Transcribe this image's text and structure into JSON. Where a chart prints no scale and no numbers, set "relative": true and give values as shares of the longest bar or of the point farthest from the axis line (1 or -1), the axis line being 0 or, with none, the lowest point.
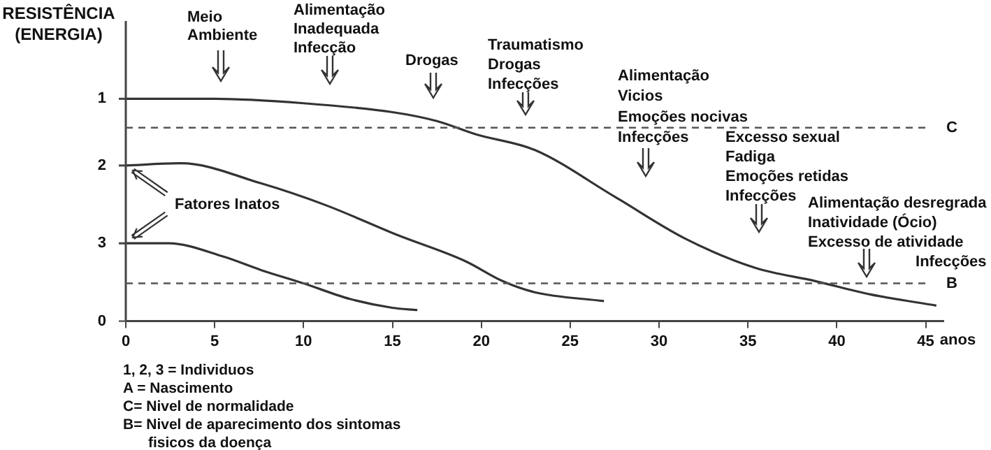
{
  "chart_data": {
    "type": "line",
    "relative": true,
    "ylabel": "RESISTÊNCIA\n(ENERGIA)",
    "xlabel": "anos",
    "xlim": [
      0,
      46
    ],
    "xticks": [
      0,
      5,
      10,
      15,
      20,
      25,
      30,
      35,
      40,
      45
    ],
    "grid": false,
    "legend": false,
    "marker": "none",
    "line_style": "solid",
    "series": [
      {
        "name": "1",
        "color": "#333333",
        "x": [
          0,
          5,
          10,
          15,
          17.5,
          19.7,
          23,
          27.5,
          31.5,
          35.4,
          38.8,
          41.9,
          45.6
        ],
        "values": [
          1,
          1,
          0.98,
          0.94,
          0.9,
          0.84,
          0.77,
          0.56,
          0.37,
          0.24,
          0.18,
          0.12,
          0.07
        ]
      },
      {
        "name": "2",
        "color": "#333333",
        "x": [
          0,
          3.1,
          7.6,
          11.3,
          15.2,
          19.1,
          21.2,
          23,
          26.9
        ],
        "values": [
          0.7,
          0.71,
          0.62,
          0.52,
          0.39,
          0.27,
          0.18,
          0.13,
          0.09
        ]
      },
      {
        "name": "3",
        "color": "#333333",
        "x": [
          0,
          2.4,
          5.5,
          7.6,
          10,
          12.6,
          15,
          16.4
        ],
        "values": [
          0.35,
          0.35,
          0.29,
          0.23,
          0.17,
          0.1,
          0.06,
          0.05
        ]
      }
    ],
    "ref_lines": [
      {
        "axis": "y",
        "value": 0.87,
        "label": "C",
        "color": "#555555",
        "line_style": "dashed"
      },
      {
        "axis": "y",
        "value": 0.17,
        "label": "B",
        "color": "#555555",
        "line_style": "dashed"
      }
    ],
    "annotations": [
      "Meio\nAmbiente",
      "Alimentação\nInadequada\nInfecção",
      "Drogas",
      "Traumatismo\nDrogas\nInfecções",
      "Alimentação\nVicios\nEmoções nocivas\nInfecções",
      "Excesso sexual\nFadiga\nEmoções retidas\nInfecções",
      "Alimentação desregrada\nInatividade (Ócio)\nExcesso de atividade\nInfecções",
      "0",
      {
        "text": "Fatores Inatos",
        "x": 0,
        "y": 0.7
      },
      "1, 2, 3 = Individuos",
      "A = Nascimento",
      "C= Nivel de normalidade",
      "B= Nivel de aparecimento dos sintomas\nfisicos da doença"
    ]
  }
}
